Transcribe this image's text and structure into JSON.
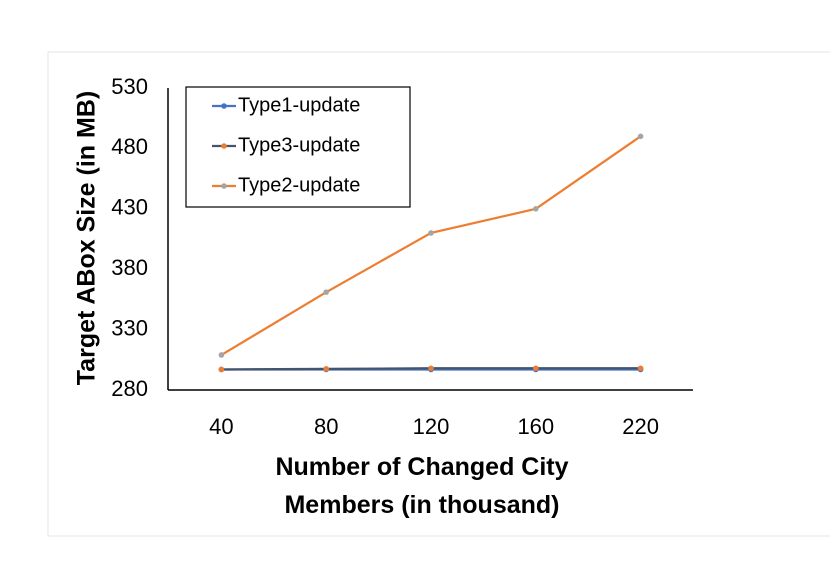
{
  "chart_data": {
    "type": "line",
    "xlabel": "Number of Changed City Members (in thousand)",
    "ylabel": "Target ABox Size (in MB)",
    "categories": [
      "40",
      "80",
      "120",
      "160",
      "220"
    ],
    "series": [
      {
        "name": "Type1-update",
        "color": "#4472c4",
        "marker_color": "#4472c4",
        "values": [
          297,
          297,
          297,
          297,
          297
        ]
      },
      {
        "name": "Type3-update",
        "color": "#44546a",
        "marker_color": "#ed7d31",
        "values": [
          297,
          297.5,
          298,
          298,
          298
        ]
      },
      {
        "name": "Type2-update",
        "color": "#ed7d31",
        "marker_color": "#a5a5a5",
        "values": [
          309,
          361,
          410,
          430,
          490
        ]
      }
    ],
    "ylim": [
      280,
      530
    ],
    "yticks": [
      280,
      330,
      380,
      430,
      480,
      530
    ],
    "grid": false,
    "legend": "top-left"
  }
}
